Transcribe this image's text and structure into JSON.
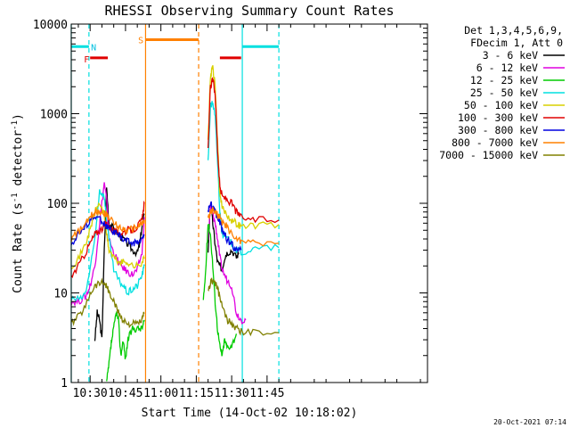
{
  "chart_data": {
    "type": "line",
    "title": "RHESSI Observing Summary Count Rates",
    "xlabel": "Start Time (14-Oct-02 10:18:02)",
    "ylabel_main": "Count Rate (s",
    "ylabel_sup1": "-1",
    "ylabel_mid": " detector",
    "ylabel_sup2": "-1",
    "ylabel_end": ")",
    "y_scale": "log",
    "ylim": [
      1,
      10000
    ],
    "xlim_minutes": [
      622,
      773
    ],
    "x_ticks": [
      {
        "label": "10:30",
        "minute": 630
      },
      {
        "label": "10:45",
        "minute": 645
      },
      {
        "label": "11:00",
        "minute": 660
      },
      {
        "label": "11:15",
        "minute": 675
      },
      {
        "label": "11:30",
        "minute": 690
      },
      {
        "label": "11:45",
        "minute": 705
      }
    ],
    "y_ticks": [
      {
        "label": "1",
        "value": 1
      },
      {
        "label": "10",
        "value": 10
      },
      {
        "label": "100",
        "value": 100
      },
      {
        "label": "1000",
        "value": 1000
      },
      {
        "label": "10000",
        "value": 10000
      }
    ],
    "legend_header": [
      "Det 1,3,4,5,6,9,",
      "FDecim 1, Att 0"
    ],
    "series": [
      {
        "name": "3 - 6 keV",
        "color": "#000000",
        "points": [
          [
            632,
            3
          ],
          [
            633,
            6
          ],
          [
            634,
            5
          ],
          [
            635,
            3
          ],
          [
            636,
            30
          ],
          [
            637,
            150
          ],
          [
            638,
            60
          ],
          [
            640,
            52
          ],
          [
            642,
            45
          ],
          [
            644,
            40
          ],
          [
            646,
            35
          ],
          [
            648,
            30
          ],
          [
            650,
            28
          ],
          [
            651,
            35
          ],
          [
            652,
            55
          ],
          [
            653,
            75
          ],
          [
            680,
            30
          ],
          [
            681,
            100
          ],
          [
            682,
            60
          ],
          [
            683,
            35
          ],
          [
            684,
            22
          ],
          [
            685,
            20
          ],
          [
            686,
            18
          ],
          [
            687,
            25
          ],
          [
            688,
            28
          ],
          [
            690,
            30
          ],
          [
            692,
            25
          ],
          [
            693,
            28
          ]
        ]
      },
      {
        "name": "6 - 12 keV",
        "color": "#e000e0",
        "points": [
          [
            622,
            8
          ],
          [
            625,
            8
          ],
          [
            628,
            9
          ],
          [
            630,
            12
          ],
          [
            632,
            20
          ],
          [
            634,
            60
          ],
          [
            636,
            170
          ],
          [
            637,
            110
          ],
          [
            638,
            40
          ],
          [
            640,
            28
          ],
          [
            642,
            22
          ],
          [
            644,
            19
          ],
          [
            646,
            17
          ],
          [
            648,
            16
          ],
          [
            650,
            18
          ],
          [
            652,
            28
          ],
          [
            653,
            70
          ],
          [
            680,
            40
          ],
          [
            681,
            90
          ],
          [
            682,
            75
          ],
          [
            683,
            60
          ],
          [
            684,
            40
          ],
          [
            685,
            25
          ],
          [
            686,
            18
          ],
          [
            688,
            14
          ],
          [
            690,
            12
          ],
          [
            692,
            6
          ],
          [
            694,
            5
          ],
          [
            696,
            5
          ]
        ]
      },
      {
        "name": "12 - 25 keV",
        "color": "#00cc00",
        "points": [
          [
            637,
            1
          ],
          [
            638,
            1.6
          ],
          [
            639,
            2.8
          ],
          [
            640,
            4
          ],
          [
            641,
            6
          ],
          [
            642,
            5
          ],
          [
            643,
            2
          ],
          [
            644,
            3
          ],
          [
            645,
            1.8
          ],
          [
            646,
            3
          ],
          [
            648,
            4
          ],
          [
            650,
            4
          ],
          [
            652,
            4
          ],
          [
            653,
            5
          ],
          [
            678,
            8
          ],
          [
            679,
            18
          ],
          [
            680,
            60
          ],
          [
            681,
            45
          ],
          [
            682,
            20
          ],
          [
            683,
            8
          ],
          [
            684,
            4
          ],
          [
            685,
            2.5
          ],
          [
            686,
            2
          ],
          [
            687,
            3
          ],
          [
            688,
            2.5
          ],
          [
            690,
            2.6
          ],
          [
            692,
            3.5
          ]
        ]
      },
      {
        "name": "25 - 50 keV",
        "color": "#00e0e0",
        "points": [
          [
            622,
            8.5
          ],
          [
            626,
            8.5
          ],
          [
            628,
            10
          ],
          [
            630,
            18
          ],
          [
            632,
            40
          ],
          [
            634,
            140
          ],
          [
            636,
            120
          ],
          [
            637,
            60
          ],
          [
            638,
            40
          ],
          [
            640,
            18
          ],
          [
            642,
            14
          ],
          [
            644,
            12
          ],
          [
            646,
            10
          ],
          [
            648,
            11
          ],
          [
            650,
            12
          ],
          [
            652,
            16
          ],
          [
            653,
            20
          ],
          [
            680,
            300
          ],
          [
            681,
            1200
          ],
          [
            682,
            1350
          ],
          [
            683,
            900
          ],
          [
            684,
            300
          ],
          [
            685,
            80
          ],
          [
            686,
            45
          ],
          [
            688,
            40
          ],
          [
            690,
            36
          ],
          [
            692,
            30
          ],
          [
            694,
            28
          ],
          [
            700,
            31
          ],
          [
            710,
            32
          ]
        ]
      },
      {
        "name": "50 - 100 keV",
        "color": "#d8d000",
        "points": [
          [
            622,
            20
          ],
          [
            625,
            24
          ],
          [
            628,
            35
          ],
          [
            630,
            50
          ],
          [
            632,
            80
          ],
          [
            634,
            100
          ],
          [
            636,
            75
          ],
          [
            637,
            45
          ],
          [
            638,
            30
          ],
          [
            640,
            25
          ],
          [
            642,
            22
          ],
          [
            644,
            22
          ],
          [
            646,
            22
          ],
          [
            648,
            20
          ],
          [
            650,
            20
          ],
          [
            652,
            22
          ],
          [
            653,
            25
          ],
          [
            680,
            500
          ],
          [
            681,
            2600
          ],
          [
            682,
            3300
          ],
          [
            683,
            2000
          ],
          [
            684,
            500
          ],
          [
            685,
            120
          ],
          [
            686,
            90
          ],
          [
            688,
            75
          ],
          [
            690,
            65
          ],
          [
            692,
            60
          ],
          [
            694,
            55
          ],
          [
            700,
            57
          ],
          [
            710,
            58
          ]
        ]
      },
      {
        "name": "100 - 300 keV",
        "color": "#e00000",
        "points": [
          [
            622,
            15
          ],
          [
            625,
            20
          ],
          [
            628,
            28
          ],
          [
            630,
            36
          ],
          [
            632,
            45
          ],
          [
            634,
            50
          ],
          [
            636,
            55
          ],
          [
            637,
            60
          ],
          [
            638,
            55
          ],
          [
            640,
            50
          ],
          [
            642,
            45
          ],
          [
            644,
            48
          ],
          [
            646,
            50
          ],
          [
            648,
            50
          ],
          [
            650,
            55
          ],
          [
            652,
            65
          ],
          [
            653,
            100
          ],
          [
            680,
            400
          ],
          [
            681,
            2000
          ],
          [
            682,
            2400
          ],
          [
            683,
            1700
          ],
          [
            684,
            400
          ],
          [
            685,
            150
          ],
          [
            686,
            120
          ],
          [
            688,
            110
          ],
          [
            690,
            100
          ],
          [
            692,
            80
          ],
          [
            694,
            70
          ],
          [
            700,
            65
          ],
          [
            710,
            65
          ]
        ]
      },
      {
        "name": "300 - 800 keV",
        "color": "#0000e0",
        "points": [
          [
            622,
            35
          ],
          [
            625,
            45
          ],
          [
            628,
            55
          ],
          [
            630,
            65
          ],
          [
            632,
            70
          ],
          [
            634,
            68
          ],
          [
            636,
            60
          ],
          [
            637,
            55
          ],
          [
            638,
            52
          ],
          [
            640,
            48
          ],
          [
            642,
            44
          ],
          [
            644,
            40
          ],
          [
            646,
            38
          ],
          [
            648,
            36
          ],
          [
            650,
            37
          ],
          [
            652,
            40
          ],
          [
            653,
            45
          ],
          [
            680,
            80
          ],
          [
            681,
            100
          ],
          [
            682,
            90
          ],
          [
            683,
            80
          ],
          [
            684,
            70
          ],
          [
            685,
            60
          ],
          [
            686,
            50
          ],
          [
            688,
            40
          ],
          [
            690,
            35
          ],
          [
            692,
            30
          ],
          [
            694,
            30
          ]
        ]
      },
      {
        "name": "800 - 7000 keV",
        "color": "#ff8000",
        "points": [
          [
            622,
            40
          ],
          [
            625,
            48
          ],
          [
            628,
            58
          ],
          [
            630,
            70
          ],
          [
            632,
            80
          ],
          [
            634,
            82
          ],
          [
            636,
            78
          ],
          [
            637,
            75
          ],
          [
            638,
            70
          ],
          [
            640,
            60
          ],
          [
            642,
            55
          ],
          [
            644,
            52
          ],
          [
            646,
            50
          ],
          [
            648,
            52
          ],
          [
            650,
            55
          ],
          [
            652,
            60
          ],
          [
            653,
            65
          ],
          [
            680,
            65
          ],
          [
            681,
            80
          ],
          [
            682,
            85
          ],
          [
            683,
            80
          ],
          [
            684,
            75
          ],
          [
            685,
            70
          ],
          [
            686,
            60
          ],
          [
            688,
            55
          ],
          [
            690,
            45
          ],
          [
            692,
            40
          ],
          [
            694,
            38
          ],
          [
            700,
            36
          ],
          [
            710,
            36
          ]
        ]
      },
      {
        "name": "7000 - 15000 keV",
        "color": "#808000",
        "points": [
          [
            622,
            4.5
          ],
          [
            625,
            5.5
          ],
          [
            628,
            7
          ],
          [
            630,
            10
          ],
          [
            632,
            12
          ],
          [
            634,
            13
          ],
          [
            636,
            13
          ],
          [
            637,
            12
          ],
          [
            638,
            10
          ],
          [
            640,
            8
          ],
          [
            642,
            6
          ],
          [
            644,
            5
          ],
          [
            646,
            4.5
          ],
          [
            648,
            4.5
          ],
          [
            650,
            4.5
          ],
          [
            652,
            5
          ],
          [
            653,
            6
          ],
          [
            680,
            10
          ],
          [
            681,
            13
          ],
          [
            682,
            14
          ],
          [
            683,
            13
          ],
          [
            684,
            11
          ],
          [
            685,
            9
          ],
          [
            686,
            7
          ],
          [
            688,
            5
          ],
          [
            690,
            4.5
          ],
          [
            692,
            4
          ],
          [
            694,
            3.7
          ],
          [
            700,
            3.6
          ],
          [
            710,
            3.6
          ]
        ]
      }
    ],
    "flag_bars": [
      {
        "label": "",
        "color": "#00e0e0",
        "value": 5600,
        "segments": [
          [
            622,
            629.5
          ],
          [
            694.5,
            710
          ]
        ]
      },
      {
        "label": "N",
        "color": "#00e0e0",
        "value": 5700,
        "segments": []
      },
      {
        "label": "F",
        "color": "#e00000",
        "value": 4200,
        "segments": [
          [
            630,
            637.5
          ],
          [
            685,
            694
          ]
        ]
      },
      {
        "label": "S",
        "color": "#ff8000",
        "value": 6700,
        "segments": [
          [
            653.5,
            676
          ]
        ]
      }
    ],
    "vertical_lines": [
      {
        "color": "#00e0e0",
        "minute": 622,
        "style": "solid"
      },
      {
        "color": "#00e0e0",
        "minute": 629.5,
        "style": "dashed"
      },
      {
        "color": "#ff8000",
        "minute": 653.5,
        "style": "solid"
      },
      {
        "color": "#ff8000",
        "minute": 676,
        "style": "dashed"
      },
      {
        "color": "#00e0e0",
        "minute": 694.5,
        "style": "solid"
      },
      {
        "color": "#00e0e0",
        "minute": 710,
        "style": "dashed"
      }
    ]
  },
  "footer": {
    "date_stamp": "20-Oct-2021 07:14"
  }
}
